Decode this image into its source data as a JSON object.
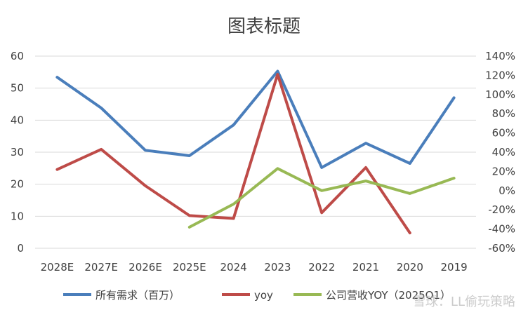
{
  "chart_data": {
    "type": "line",
    "title": "图表标题",
    "categories": [
      "2028E",
      "2027E",
      "2026E",
      "2025E",
      "2024",
      "2023",
      "2022",
      "2021",
      "2020",
      "2019"
    ],
    "y_left": {
      "ticks": [
        "0",
        "10",
        "20",
        "30",
        "40",
        "50",
        "60"
      ],
      "range": [
        0,
        60
      ]
    },
    "y_right": {
      "ticks": [
        "-60%",
        "-40%",
        "-20%",
        "0%",
        "20%",
        "40%",
        "60%",
        "80%",
        "100%",
        "120%",
        "140%"
      ],
      "range": [
        -0.6,
        1.4
      ]
    },
    "grid": true,
    "legend_position": "bottom",
    "series": [
      {
        "name": "所有需求（百万）",
        "axis": "left",
        "color": "#4a7ebb",
        "values": [
          53.4,
          43.8,
          30.6,
          28.9,
          38.5,
          55.3,
          25.2,
          32.8,
          26.5,
          47.0
        ]
      },
      {
        "name": "yoy",
        "axis": "right",
        "color": "#be4b48",
        "values": [
          0.22,
          0.43,
          0.05,
          -0.26,
          -0.29,
          1.21,
          -0.23,
          0.24,
          -0.44,
          null
        ]
      },
      {
        "name": "公司营收YOY（2025Q1）",
        "axis": "right",
        "color": "#98b954",
        "values": [
          null,
          null,
          null,
          -0.38,
          -0.14,
          0.23,
          0.0,
          0.1,
          -0.03,
          0.13
        ]
      }
    ]
  },
  "watermark": "雪球：LL偷玩策略"
}
